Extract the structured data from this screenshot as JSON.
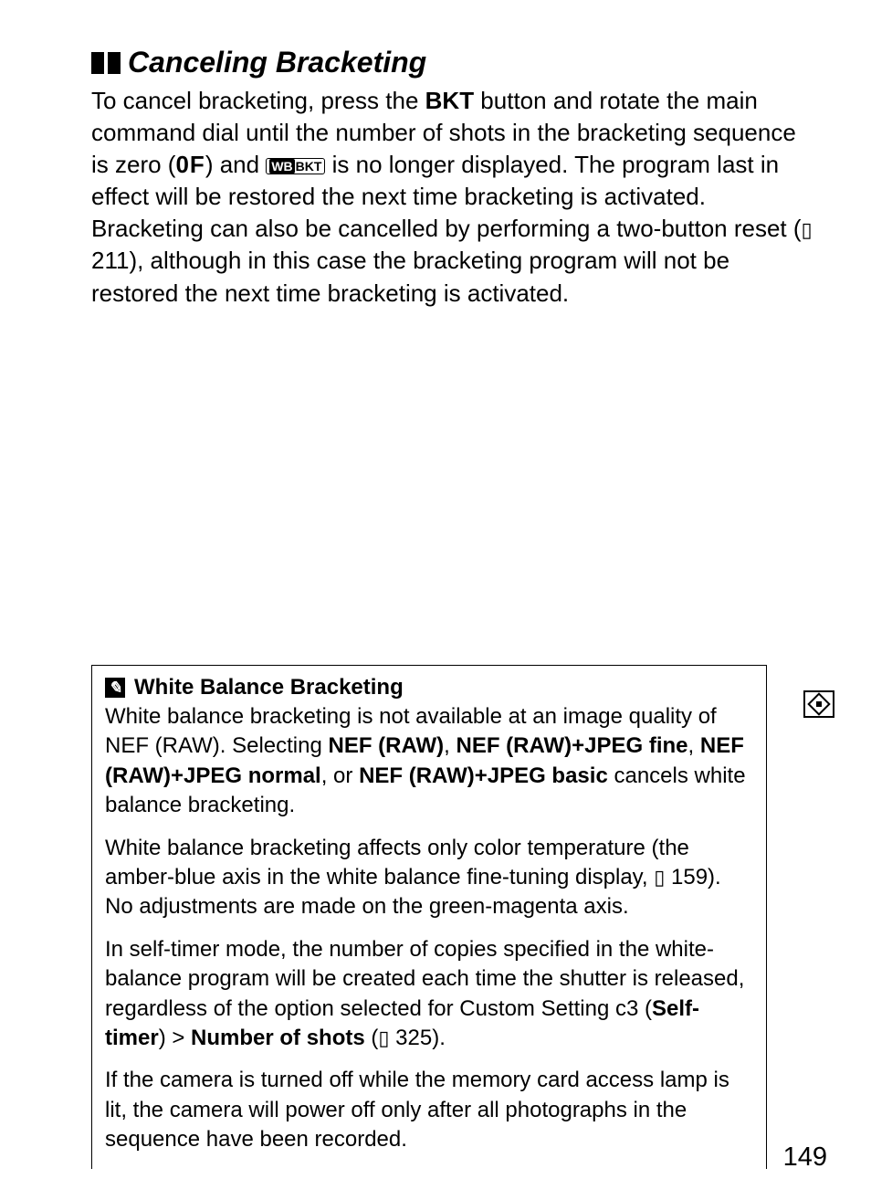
{
  "heading": "Canceling Bracketing",
  "body": {
    "t1": "To cancel bracketing, press the ",
    "bkt": "BKT",
    "t2": " button and rotate the main command dial until the number of shots in the bracketing sequence is zero (",
    "zero": "0F",
    "t3": ") and ",
    "wb": "WB",
    "bktlabel": "BKT",
    "t4": " is no longer displayed.  The program last in effect will be restored the next time bracketing is activated.  Bracketing can also be cancelled by performing a two-button reset (",
    "ref1": " 211), although in this case the bracketing program will not be restored the next time bracketing is activated."
  },
  "note": {
    "title": "White Balance Bracketing",
    "p1a": "White balance bracketing is not available at an image quality of NEF (RAW).  Selecting ",
    "nef1": "NEF (RAW)",
    "c1": ", ",
    "nef2": "NEF (RAW)+JPEG fine",
    "c2": ", ",
    "nef3": "NEF (RAW)+JPEG normal",
    "c3": ", or ",
    "nef4": "NEF (RAW)+JPEG basic",
    "p1b": " cancels white balance bracketing.",
    "p2a": "White balance bracketing affects only color temperature (the amber-blue axis in the white balance fine-tuning display, ",
    "p2ref": " 159).  No adjustments are made on the green-magenta axis.",
    "p3a": "In self-timer mode, the number of copies specified in the white-balance program will be created each time the shutter is released, regardless of the option selected for Custom Setting c3 (",
    "self": "Self-timer",
    "gt": ") > ",
    "num": "Number of shots",
    "p3b": " (",
    "p3ref": " 325).",
    "p4": "If the camera is turned off while the memory card access lamp is lit, the camera will power off only after all photographs in the sequence have been recorded."
  },
  "page_number": "149"
}
